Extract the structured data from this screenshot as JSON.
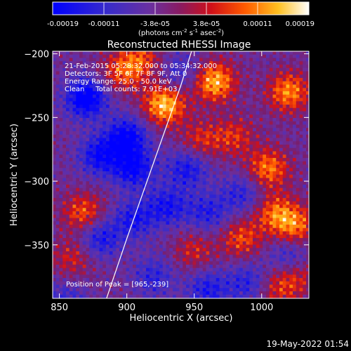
{
  "chart_data": {
    "type": "heatmap",
    "title": "Reconstructed RHESSI Image",
    "xlabel": "Heliocentric X (arcsec)",
    "ylabel": "Heliocentric Y (arcsec)",
    "xlim": [
      845,
      1035
    ],
    "ylim": [
      -392,
      -198
    ],
    "x_ticks": [
      850,
      900,
      950,
      1000
    ],
    "y_ticks": [
      -200,
      -250,
      -300,
      -350
    ],
    "colorbar": {
      "ticks": [
        "-0.00019",
        "-0.00011",
        "-3.8e-05",
        "3.8e-05",
        "0.00011",
        "0.00019"
      ],
      "unit_prefix": "(photons cm",
      "unit_sup1": "-2",
      "unit_mid1": " s",
      "unit_sup2": "-1",
      "unit_mid2": " asec",
      "unit_sup3": "-2",
      "unit_suffix": ")",
      "range": [
        -0.00019,
        0.00019
      ]
    },
    "info_lines": [
      "21-Feb-2015 05:28:32.000 to 05:34:32.000",
      "Detectors: 3F 5F 6F 7F 8F 9F, Att 0",
      "Energy Range: 25.0 - 50.0 keV",
      "Clean     Total counts: 7.91E+03"
    ],
    "peak_label": "Position of Peak = [965,-239]",
    "peak_position": [
      965,
      -239
    ],
    "hot_spots": [
      {
        "x": 928,
        "y": -240,
        "value": 0.00019
      },
      {
        "x": 965,
        "y": -222,
        "value": 0.00018
      },
      {
        "x": 1020,
        "y": -230,
        "value": 0.00015
      },
      {
        "x": 1005,
        "y": -290,
        "value": 0.00014
      },
      {
        "x": 1025,
        "y": -335,
        "value": 0.00013
      },
      {
        "x": 868,
        "y": -325,
        "value": 0.00012
      },
      {
        "x": 1010,
        "y": -325,
        "value": 0.00012
      },
      {
        "x": 985,
        "y": -345,
        "value": 0.00011
      },
      {
        "x": 910,
        "y": -205,
        "value": 0.00011
      },
      {
        "x": 895,
        "y": -215,
        "value": 0.0001
      },
      {
        "x": 955,
        "y": -268,
        "value": 9e-05
      },
      {
        "x": 980,
        "y": -265,
        "value": 9e-05
      },
      {
        "x": 950,
        "y": -355,
        "value": 8e-05
      },
      {
        "x": 1025,
        "y": -375,
        "value": 9e-05
      },
      {
        "x": 860,
        "y": -360,
        "value": 8e-05
      },
      {
        "x": 1010,
        "y": -385,
        "value": 8e-05
      }
    ],
    "cold_spots": [
      {
        "x": 870,
        "y": -235,
        "value": -0.00019
      },
      {
        "x": 900,
        "y": -265,
        "value": -0.00016
      },
      {
        "x": 880,
        "y": -280,
        "value": -0.00014
      },
      {
        "x": 905,
        "y": -290,
        "value": -0.00015
      },
      {
        "x": 880,
        "y": -345,
        "value": -0.00012
      },
      {
        "x": 905,
        "y": -330,
        "value": -0.00011
      },
      {
        "x": 945,
        "y": -290,
        "value": -0.00012
      },
      {
        "x": 930,
        "y": -320,
        "value": -0.00012
      },
      {
        "x": 960,
        "y": -385,
        "value": -0.00011
      },
      {
        "x": 960,
        "y": -325,
        "value": -0.0001
      },
      {
        "x": 985,
        "y": -310,
        "value": -9e-05
      },
      {
        "x": 990,
        "y": -380,
        "value": -0.0001
      },
      {
        "x": 1020,
        "y": -360,
        "value": -9e-05
      },
      {
        "x": 940,
        "y": -215,
        "value": -8e-05
      },
      {
        "x": 855,
        "y": -395,
        "value": -8e-05
      },
      {
        "x": 920,
        "y": -375,
        "value": -9e-05
      }
    ],
    "limb": [
      [
        885,
        -392
      ],
      [
        900,
        -345
      ],
      [
        915,
        -300
      ],
      [
        930,
        -255
      ],
      [
        940,
        -225
      ],
      [
        948,
        -198
      ]
    ],
    "grid": false
  },
  "timestamp": "19-May-2022 01:54"
}
